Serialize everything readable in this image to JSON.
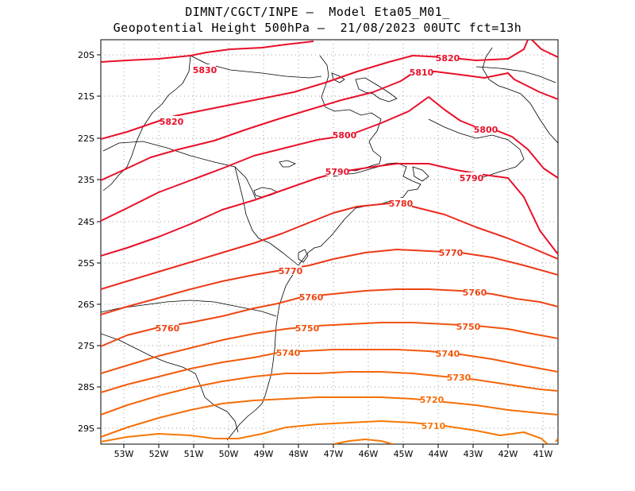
{
  "header": {
    "line1": "DIMNT/CGCT/INPE –  Model Eta05_M01_",
    "line2": "Geopotential Height 500hPa –  21/08/2023 00UTC fct=13h"
  },
  "axes": {
    "lon_ticks": [
      "53W",
      "52W",
      "51W",
      "50W",
      "49W",
      "48W",
      "47W",
      "46W",
      "45W",
      "44W",
      "43W",
      "42W",
      "41W"
    ],
    "lat_ticks": [
      "20S",
      "21S",
      "22S",
      "23S",
      "24S",
      "25S",
      "26S",
      "27S",
      "28S",
      "29S"
    ]
  },
  "contours": [
    {
      "level": "5830",
      "color": "#e8102a"
    },
    {
      "level": "5820",
      "color": "#e8102a"
    },
    {
      "level": "5810",
      "color": "#e8102a"
    },
    {
      "level": "5800",
      "color": "#e8102a"
    },
    {
      "level": "5790",
      "color": "#e8102a"
    },
    {
      "level": "5780",
      "color": "#ea2a1e"
    },
    {
      "level": "5770",
      "color": "#ec3a18"
    },
    {
      "level": "5760",
      "color": "#ee4514"
    },
    {
      "level": "5750",
      "color": "#f05210"
    },
    {
      "level": "5740",
      "color": "#f25a0c"
    },
    {
      "level": "5730",
      "color": "#f4650a"
    },
    {
      "level": "5720",
      "color": "#f56e08"
    },
    {
      "level": "5710",
      "color": "#f67806"
    }
  ]
}
